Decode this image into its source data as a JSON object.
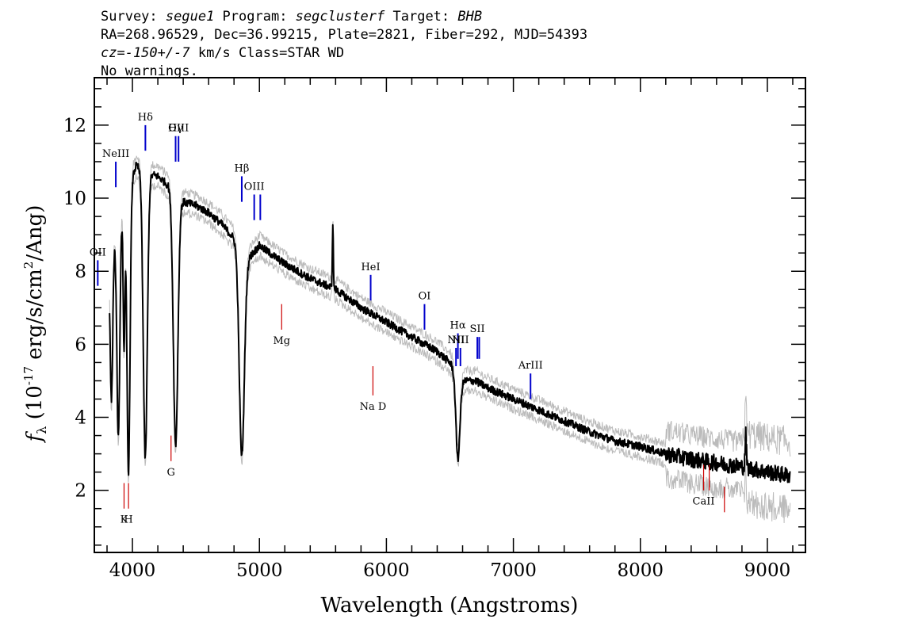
{
  "header": {
    "line1": {
      "survey_label": "Survey: ",
      "survey": "segue1",
      "program_label": " Program: ",
      "program": "segclusterf",
      "target_label": " Target: ",
      "target": "BHB"
    },
    "line2": "RA=268.96529, Dec=36.99215, Plate=2821, Fiber=292, MJD=54393",
    "line3": {
      "cz": "cz=-150+/-7",
      "rest": " km/s Class=STAR WD"
    },
    "line4": "No warnings."
  },
  "chart_data": {
    "type": "line",
    "xlabel": "Wavelength (Angstroms)",
    "ylabel_parts": {
      "f": "f",
      "sub": "λ",
      "pre": " (10",
      "exp": "-17",
      "post": " erg/s/cm",
      "exp2": "2",
      "end": "/Ang)"
    },
    "xlim": [
      3700,
      9300
    ],
    "ylim": [
      0.3,
      13.3
    ],
    "x_ticks": [
      4000,
      5000,
      6000,
      7000,
      8000,
      9000
    ],
    "y_ticks": [
      2,
      4,
      6,
      8,
      10,
      12
    ],
    "x_tick_labels": [
      "4000",
      "5000",
      "6000",
      "7000",
      "8000",
      "9000"
    ],
    "y_tick_labels": [
      "2",
      "4",
      "6",
      "8",
      "10",
      "12"
    ],
    "series_color": "#000000",
    "noise_color": "#bbbbbb",
    "emission_color": "#0000cc",
    "absorption_color": "#cc0000",
    "continuum": {
      "x": [
        3820,
        3880,
        3960,
        4030,
        4100,
        4200,
        4300,
        4400,
        4500,
        4600,
        4700,
        4800,
        4900,
        5000,
        5200,
        5400,
        5600,
        5800,
        6000,
        6200,
        6400,
        6500,
        6600,
        6700,
        6800,
        7000,
        7200,
        7400,
        7600,
        7800,
        8000,
        8200,
        8400,
        8600,
        8800,
        9000,
        9180
      ],
      "y": [
        8.2,
        9.4,
        10.2,
        10.9,
        10.7,
        10.6,
        10.3,
        9.9,
        9.8,
        9.6,
        9.3,
        8.9,
        8.3,
        8.7,
        8.2,
        7.8,
        7.5,
        7.0,
        6.6,
        6.2,
        5.8,
        5.5,
        5.0,
        5.0,
        4.8,
        4.5,
        4.2,
        3.9,
        3.6,
        3.35,
        3.2,
        3.0,
        2.85,
        2.75,
        2.65,
        2.5,
        2.4
      ]
    },
    "absorption_features": [
      {
        "center": 3835,
        "width": 10,
        "depth": 4.0
      },
      {
        "center": 3889,
        "width": 12,
        "depth": 6.0
      },
      {
        "center": 3934,
        "width": 7,
        "depth": 4.0
      },
      {
        "center": 3969,
        "width": 12,
        "depth": 7.8
      },
      {
        "center": 4101,
        "width": 16,
        "depth": 7.8
      },
      {
        "center": 4340,
        "width": 18,
        "depth": 6.9
      },
      {
        "center": 4861,
        "width": 20,
        "depth": 5.6
      },
      {
        "center": 6563,
        "width": 16,
        "depth": 2.3
      }
    ],
    "emission_features": [
      {
        "center": 5578,
        "width": 4,
        "height": 1.7
      },
      {
        "center": 8830,
        "width": 5,
        "height": 0.9
      }
    ],
    "emission_lines": [
      {
        "label": "NeIII",
        "x": 3869,
        "y1": 10.3,
        "y2": 11.0
      },
      {
        "label": "Hδ",
        "x": 4102,
        "y1": 11.3,
        "y2": 12.0
      },
      {
        "label": "Hγ",
        "x": 4340,
        "y1": 11.0,
        "y2": 11.7
      },
      {
        "label": "OIII",
        "x": 4363,
        "y1": 11.0,
        "y2": 11.7
      },
      {
        "label": "Hβ",
        "x": 4861,
        "y1": 9.9,
        "y2": 10.6
      },
      {
        "label": "OIII",
        "x": 4959,
        "y1": 9.4,
        "y2": 10.1
      },
      {
        "label": "",
        "x": 5007,
        "y1": 9.4,
        "y2": 10.1
      },
      {
        "label": "OII",
        "x": 3727,
        "y1": 7.6,
        "y2": 8.3
      },
      {
        "label": "HeI",
        "x": 5876,
        "y1": 7.2,
        "y2": 7.9
      },
      {
        "label": "OI",
        "x": 6300,
        "y1": 6.4,
        "y2": 7.1
      },
      {
        "label": "Hα",
        "x": 6563,
        "y1": 5.6,
        "y2": 6.3
      },
      {
        "label": "NII",
        "x": 6548,
        "y1": 5.4,
        "y2": 5.9
      },
      {
        "label": "NII",
        "x": 6583,
        "y1": 5.4,
        "y2": 5.9
      },
      {
        "label": "SII",
        "x": 6716,
        "y1": 5.6,
        "y2": 6.2
      },
      {
        "label": "",
        "x": 6731,
        "y1": 5.6,
        "y2": 6.2
      },
      {
        "label": "ArIII",
        "x": 7135,
        "y1": 4.5,
        "y2": 5.2
      }
    ],
    "absorption_lines": [
      {
        "label": "K",
        "x": 3934,
        "y1": 1.5,
        "y2": 2.2
      },
      {
        "label": "H",
        "x": 3969,
        "y1": 1.5,
        "y2": 2.2
      },
      {
        "label": "G",
        "x": 4304,
        "y1": 2.8,
        "y2": 3.5
      },
      {
        "label": "Mg",
        "x": 5175,
        "y1": 6.4,
        "y2": 7.1
      },
      {
        "label": "Na D",
        "x": 5894,
        "y1": 4.6,
        "y2": 5.4
      },
      {
        "label": "CaII",
        "x": 8498,
        "y1": 2.0,
        "y2": 2.7
      },
      {
        "label": "",
        "x": 8542,
        "y1": 2.0,
        "y2": 2.7
      },
      {
        "label": "",
        "x": 8662,
        "y1": 1.4,
        "y2": 2.1
      }
    ]
  }
}
